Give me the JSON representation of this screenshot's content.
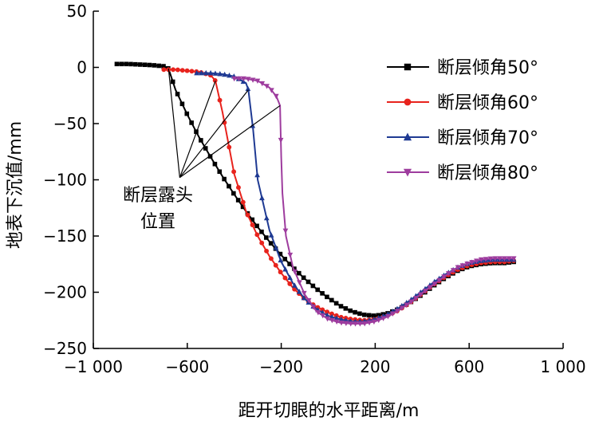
{
  "chart_data": {
    "type": "line",
    "xlabel": "距开切眼的水平距离/m",
    "ylabel": "地表下沉值/mm",
    "xlim": [
      -1000,
      1000
    ],
    "ylim": [
      -250,
      50
    ],
    "xticks": [
      -1000,
      -600,
      -200,
      200,
      600,
      1000
    ],
    "xtick_labels": [
      "−1 000",
      "−600",
      "−200",
      "200",
      "600",
      "1 000"
    ],
    "yticks": [
      50,
      0,
      -50,
      -100,
      -150,
      -200,
      -250
    ],
    "ytick_labels": [
      "50",
      "0",
      "−50",
      "−100",
      "−150",
      "−200",
      "−250"
    ],
    "grid": false,
    "legend_position": "top-right",
    "series": [
      {
        "name": "断层倾角50°",
        "color": "#000000",
        "marker": "square",
        "x": [
          -900,
          -850,
          -800,
          -750,
          -700,
          -680,
          -650,
          -600,
          -550,
          -500,
          -450,
          -400,
          -350,
          -300,
          -250,
          -200,
          -150,
          -100,
          -50,
          0,
          50,
          100,
          150,
          200,
          250,
          300,
          350,
          400,
          450,
          500,
          550,
          600,
          650,
          700,
          750,
          790
        ],
        "y": [
          3,
          3,
          2.5,
          2,
          1,
          -1,
          -20,
          -42,
          -62,
          -80,
          -97,
          -113,
          -128,
          -142,
          -155,
          -167,
          -178,
          -188,
          -197,
          -205,
          -212,
          -217,
          -220,
          -221,
          -219,
          -215,
          -209,
          -202,
          -194,
          -187,
          -181,
          -177,
          -175,
          -174,
          -174,
          -173
        ]
      },
      {
        "name": "断层倾角60°",
        "color": "#e8231d",
        "marker": "circle",
        "x": [
          -700,
          -650,
          -600,
          -550,
          -500,
          -480,
          -450,
          -400,
          -350,
          -300,
          -250,
          -200,
          -150,
          -100,
          -50,
          0,
          50,
          100,
          150,
          200,
          250,
          300,
          350,
          400,
          450,
          500,
          550,
          600,
          650,
          700,
          750,
          790
        ],
        "y": [
          -2,
          -2,
          -3,
          -4,
          -7,
          -12,
          -40,
          -95,
          -128,
          -150,
          -168,
          -183,
          -196,
          -206,
          -213,
          -218,
          -222,
          -224,
          -225,
          -224,
          -221,
          -216,
          -209,
          -201,
          -193,
          -186,
          -180,
          -176,
          -174,
          -173,
          -173,
          -172
        ]
      },
      {
        "name": "断层倾角70°",
        "color": "#1f3a93",
        "marker": "triangle-up",
        "x": [
          -560,
          -500,
          -450,
          -400,
          -350,
          -340,
          -320,
          -300,
          -250,
          -200,
          -150,
          -100,
          -50,
          0,
          50,
          100,
          150,
          200,
          250,
          300,
          350,
          400,
          450,
          500,
          550,
          600,
          650,
          700,
          750,
          790
        ],
        "y": [
          -5,
          -5,
          -6,
          -8,
          -14,
          -20,
          -55,
          -100,
          -145,
          -173,
          -192,
          -206,
          -215,
          -221,
          -224,
          -226,
          -226,
          -224,
          -220,
          -214,
          -207,
          -199,
          -191,
          -184,
          -178,
          -174,
          -172,
          -171,
          -171,
          -171
        ]
      },
      {
        "name": "断层倾角80°",
        "color": "#9e3c9e",
        "marker": "triangle-down",
        "x": [
          -400,
          -350,
          -300,
          -250,
          -220,
          -205,
          -200,
          -195,
          -180,
          -150,
          -100,
          -50,
          0,
          50,
          100,
          150,
          200,
          250,
          300,
          350,
          400,
          450,
          500,
          550,
          600,
          650,
          700,
          750,
          790
        ],
        "y": [
          -10,
          -10,
          -12,
          -18,
          -26,
          -34,
          -80,
          -112,
          -150,
          -178,
          -202,
          -217,
          -224,
          -227,
          -228,
          -228,
          -226,
          -222,
          -216,
          -209,
          -201,
          -193,
          -185,
          -178,
          -174,
          -171,
          -170,
          -170,
          -170
        ]
      }
    ],
    "annotation": {
      "lines": [
        "断层露头",
        "位置"
      ],
      "points": [
        [
          -680,
          -1
        ],
        [
          -480,
          -12
        ],
        [
          -340,
          -20
        ],
        [
          -205,
          -34
        ]
      ],
      "anchor": [
        -632,
        -98
      ]
    }
  }
}
